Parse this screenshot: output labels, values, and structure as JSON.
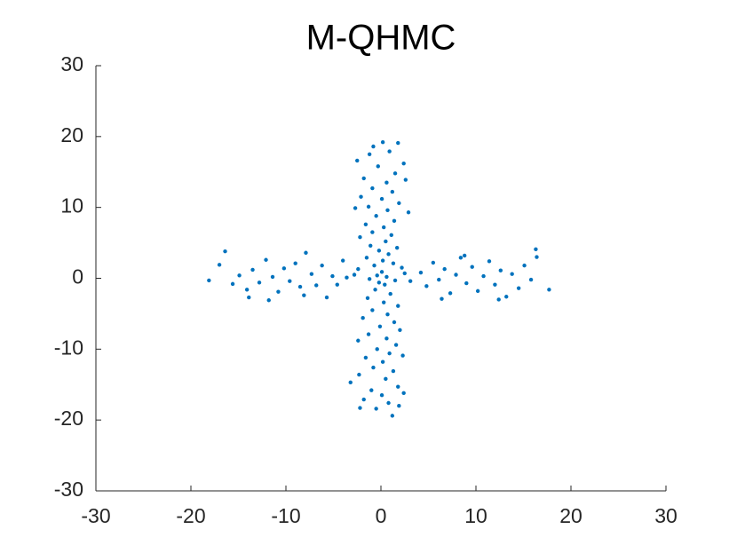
{
  "chart_data": {
    "type": "scatter",
    "title": "M-QHMC",
    "color": "#0072bd",
    "xlim": [
      -30,
      30
    ],
    "ylim": [
      -30,
      30
    ],
    "xticks": [
      -30,
      -20,
      -10,
      0,
      10,
      20,
      30
    ],
    "yticks": [
      -30,
      -20,
      -10,
      0,
      10,
      20,
      30
    ],
    "x": [
      0.2,
      -0.8,
      1.8,
      -1.2,
      0.9,
      -2.5,
      2.4,
      -0.3,
      1.5,
      -1.8,
      0.6,
      2.6,
      -0.9,
      1.2,
      -2.1,
      0.1,
      1.9,
      -1.3,
      0.7,
      -2.7,
      2.9,
      -0.5,
      1.4,
      -1.6,
      0.3,
      -0.9,
      1.1,
      -2.2,
      0.5,
      -1.1,
      1.7,
      -0.2,
      0.8,
      -1.5,
      0.2,
      1.3,
      -0.7,
      2.2,
      -2.4,
      0.1,
      -0.4,
      0.6,
      -1.2,
      1.5,
      -0.2,
      0.4,
      -2.8,
      3.1,
      -3.6,
      2.5,
      -0.6,
      1.0,
      -1.4,
      0.3,
      1.8,
      -0.9,
      0.7,
      -1.9,
      1.4,
      -0.1,
      2.0,
      -1.3,
      0.6,
      -2.4,
      1.6,
      -0.4,
      0.9,
      -1.6,
      2.3,
      0.2,
      -0.8,
      1.3,
      -2.3,
      0.5,
      -3.2,
      1.8,
      -1.0,
      0.1,
      2.4,
      -1.8,
      0.8,
      -2.2,
      1.9,
      -0.5,
      1.2,
      -18.1,
      -16.4,
      -17.0,
      -15.6,
      -14.9,
      -14.1,
      -13.5,
      -12.8,
      -12.1,
      -11.4,
      -10.8,
      -10.2,
      -9.6,
      -9.0,
      -8.5,
      -7.9,
      -7.3,
      -6.8,
      -6.2,
      -5.7,
      -5.1,
      -4.6,
      -4.0,
      -13.9,
      -11.8,
      -8.1,
      4.2,
      4.8,
      5.5,
      6.1,
      6.7,
      7.3,
      7.9,
      8.4,
      9.0,
      9.6,
      10.2,
      10.8,
      11.4,
      12.0,
      12.6,
      13.2,
      13.8,
      14.5,
      15.1,
      15.8,
      16.3,
      16.4,
      17.7,
      12.4,
      6.4,
      8.8
    ],
    "values": [
      19.2,
      18.6,
      19.1,
      17.5,
      17.9,
      16.6,
      16.2,
      15.8,
      14.8,
      14.1,
      13.5,
      13.9,
      12.7,
      12.2,
      11.5,
      11.2,
      10.6,
      10.1,
      9.6,
      9.9,
      9.3,
      8.8,
      8.1,
      7.6,
      7.2,
      6.5,
      6.1,
      5.8,
      5.2,
      4.6,
      4.3,
      3.9,
      3.4,
      2.9,
      2.5,
      2.1,
      1.8,
      1.5,
      1.3,
      0.9,
      0.4,
      0.2,
      -0.1,
      -0.3,
      -0.6,
      -0.9,
      0.5,
      -0.4,
      0.1,
      0.7,
      -1.6,
      -2.2,
      -2.8,
      -3.4,
      -3.9,
      -4.5,
      -5.1,
      -5.6,
      -6.2,
      -6.8,
      -7.3,
      -7.9,
      -8.5,
      -8.8,
      -9.4,
      -10.0,
      -10.6,
      -11.2,
      -10.9,
      -11.8,
      -12.6,
      -13.1,
      -13.6,
      -14.2,
      -14.7,
      -15.3,
      -15.8,
      -16.5,
      -16.2,
      -17.1,
      -17.6,
      -18.3,
      -18.0,
      -18.4,
      -19.4,
      -0.3,
      3.8,
      1.9,
      -0.8,
      0.4,
      -1.6,
      1.2,
      -0.6,
      2.6,
      0.2,
      -1.9,
      1.4,
      -0.4,
      2.1,
      -1.2,
      3.6,
      0.6,
      -1.0,
      1.8,
      -2.7,
      0.3,
      -0.9,
      2.5,
      -2.7,
      -3.1,
      -2.4,
      0.8,
      -1.1,
      2.2,
      -0.2,
      1.3,
      -2.1,
      0.5,
      2.9,
      -0.7,
      1.6,
      -1.8,
      0.3,
      2.4,
      -0.9,
      1.1,
      -2.6,
      0.6,
      -1.4,
      1.8,
      -0.2,
      4.1,
      3.0,
      -1.6,
      -3.0,
      -2.9,
      3.2
    ]
  }
}
